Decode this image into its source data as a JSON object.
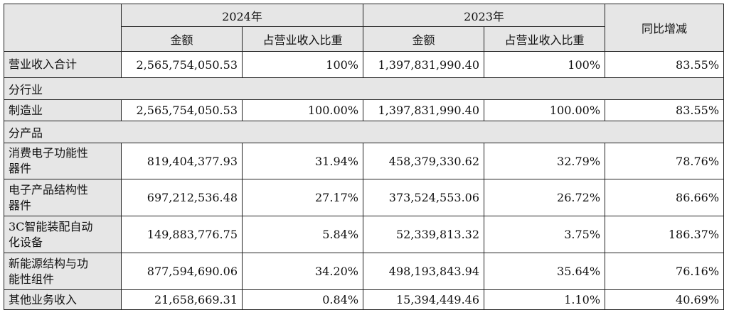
{
  "header": {
    "year_2024": "2024年",
    "year_2023": "2023年",
    "amount": "金额",
    "ratio": "占营业收入比重",
    "yoy": "同比增减"
  },
  "total": {
    "label": "营业收入合计",
    "amount_2024": "2,565,754,050.53",
    "ratio_2024": "100%",
    "amount_2023": "1,397,831,990.40",
    "ratio_2023": "100%",
    "yoy": "83.55%"
  },
  "sections": {
    "industry": "分行业",
    "product": "分产品"
  },
  "industry_rows": [
    {
      "label": "制造业",
      "amount_2024": "2,565,754,050.53",
      "ratio_2024": "100.00%",
      "amount_2023": "1,397,831,990.40",
      "ratio_2023": "100.00%",
      "yoy": "83.55%"
    }
  ],
  "product_rows": [
    {
      "label_line1": "消费电子功能性",
      "label_line2": "器件",
      "amount_2024": "819,404,377.93",
      "ratio_2024": "31.94%",
      "amount_2023": "458,379,330.62",
      "ratio_2023": "32.79%",
      "yoy": "78.76%"
    },
    {
      "label_line1": "电子产品结构性",
      "label_line2": "器件",
      "amount_2024": "697,212,536.48",
      "ratio_2024": "27.17%",
      "amount_2023": "373,524,553.06",
      "ratio_2023": "26.72%",
      "yoy": "86.66%"
    },
    {
      "label_line1": "3C智能装配自动",
      "label_line2": "化设备",
      "amount_2024": "149,883,776.75",
      "ratio_2024": "5.84%",
      "amount_2023": "52,339,813.32",
      "ratio_2023": "3.75%",
      "yoy": "186.37%"
    },
    {
      "label_line1": "新能源结构与功",
      "label_line2": "能性组件",
      "amount_2024": "877,594,690.06",
      "ratio_2024": "34.20%",
      "amount_2023": "498,193,843.94",
      "ratio_2023": "35.64%",
      "yoy": "76.16%"
    },
    {
      "label_line1": "其他业务收入",
      "label_line2": "",
      "amount_2024": "21,658,669.31",
      "ratio_2024": "0.84%",
      "amount_2023": "15,394,449.46",
      "ratio_2023": "1.10%",
      "yoy": "40.69%"
    }
  ]
}
